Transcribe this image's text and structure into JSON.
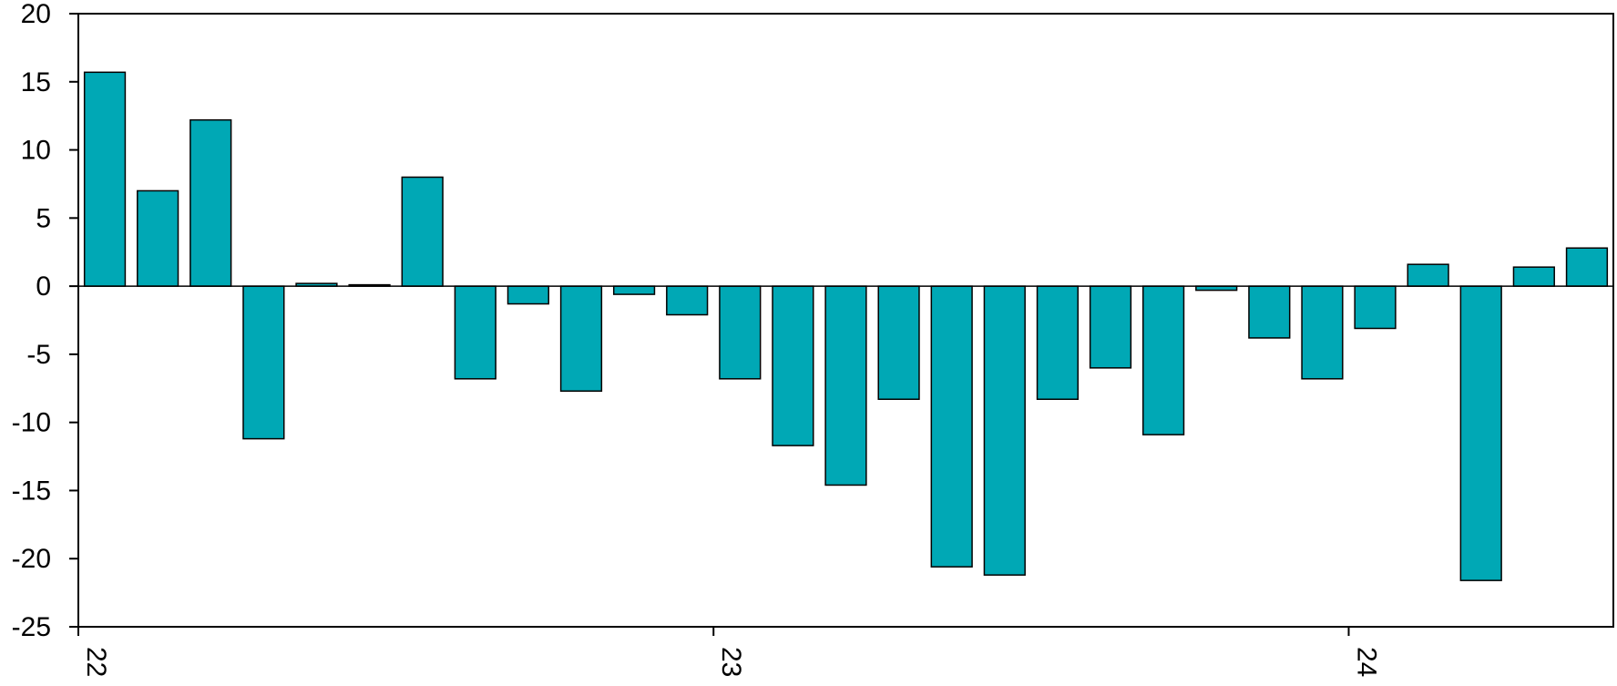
{
  "chart_data": {
    "type": "bar",
    "title": "",
    "xlabel": "",
    "ylabel": "",
    "ylim": [
      -25,
      20
    ],
    "yticks": [
      20,
      15,
      10,
      5,
      0,
      -5,
      -10,
      -15,
      -20,
      -25
    ],
    "ytick_labels": [
      "20",
      "15",
      "10",
      "5",
      "0",
      "-5",
      "-10",
      "-15",
      "-20",
      "-25"
    ],
    "xtick_labels": [
      "22",
      "23",
      "24"
    ],
    "xtick_positions": [
      0,
      12,
      24
    ],
    "x_range": [
      0,
      29
    ],
    "grid": false,
    "legend": "none",
    "bar_color": "#00A8B5",
    "series": [
      {
        "values": [
          15.7,
          7.0,
          12.2,
          -11.2,
          0.2,
          0.1,
          8.0,
          -6.8,
          -1.3,
          -7.7,
          -0.6,
          -2.1,
          -6.8,
          -11.7,
          -14.6,
          -8.3,
          -20.6,
          -21.2,
          -8.3,
          -6.0,
          -10.9,
          -0.3,
          -3.8,
          -6.8,
          -3.1,
          1.6,
          -21.6,
          1.4,
          2.8
        ]
      }
    ]
  }
}
